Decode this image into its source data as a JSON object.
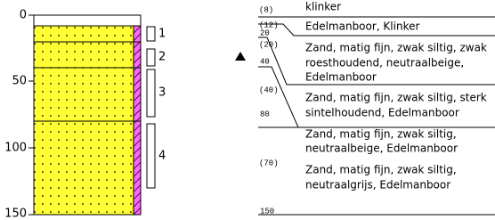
{
  "depth_axis": {
    "ticks": [
      "0",
      "50",
      "100",
      "150"
    ]
  },
  "sample_numbers": [
    "1",
    "2",
    "3",
    "4"
  ],
  "layers": [
    {
      "depth_label": "(8)",
      "lines": [
        "klinker"
      ]
    },
    {
      "depth_label": "(12)",
      "lines": [
        "Edelmanboor,  Klinker"
      ]
    },
    {
      "depth_label": "(20)",
      "lines": [
        "Zand, matig fijn, zwak siltig, zwak",
        "roesthoudend, neutraalbeige,",
        "Edelmanboor"
      ]
    },
    {
      "depth_label": "(40)",
      "lines": [
        "Zand, matig fijn, zwak siltig, sterk",
        "sintelhoudend,  Edelmanboor"
      ]
    },
    {
      "depth_label": null,
      "lines": [
        "Zand, matig fijn, zwak siltig,",
        "neutraalbeige, Edelmanboor"
      ]
    },
    {
      "depth_label": "(70)",
      "lines": [
        "Zand, matig fijn, zwak siltig,",
        "neutraalgrijs, Edelmanboor"
      ]
    }
  ],
  "depth_marks": [
    "20",
    "40",
    "80",
    "150"
  ]
}
